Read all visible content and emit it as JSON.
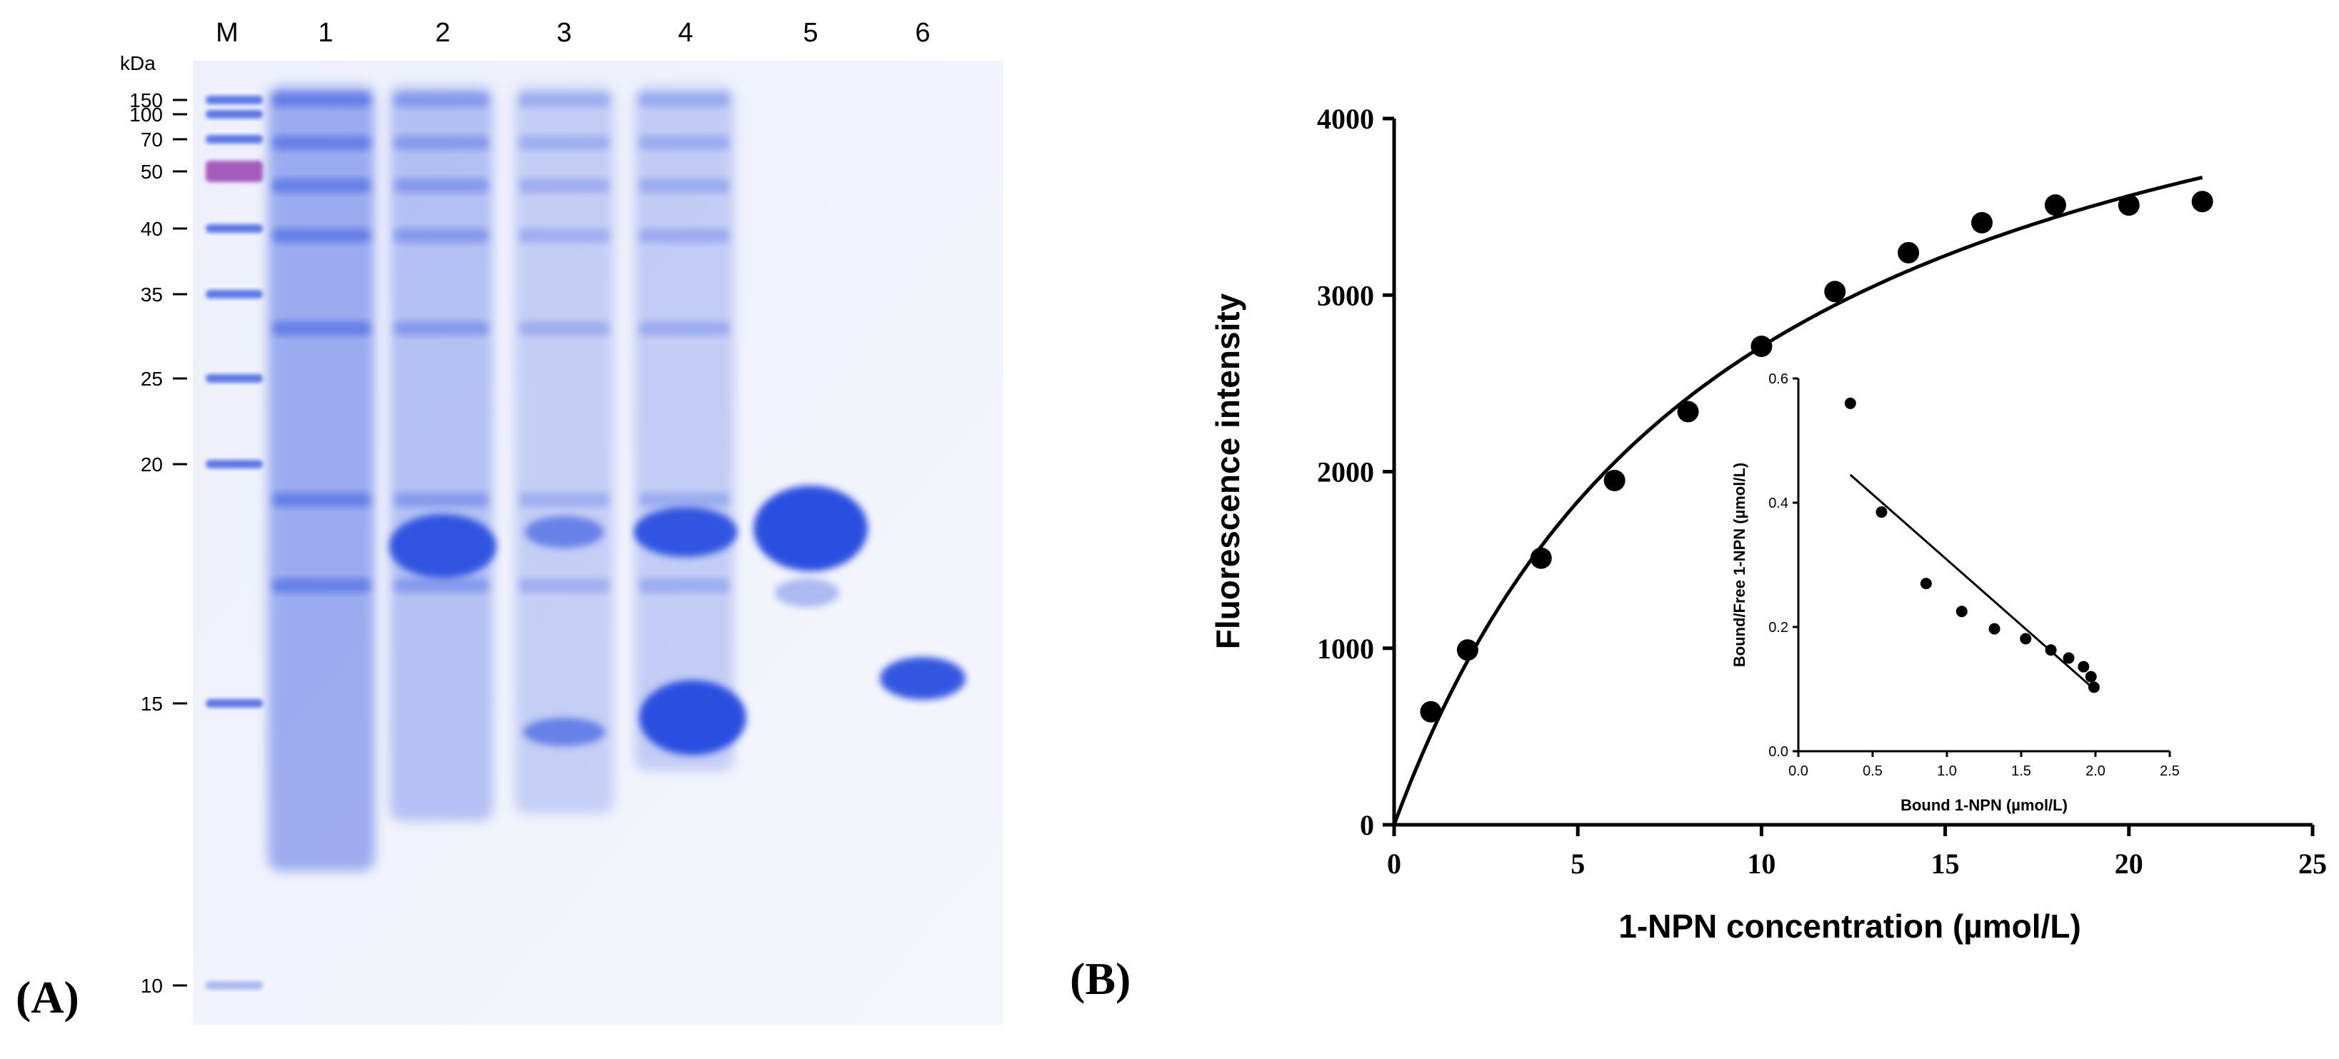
{
  "panels": {
    "a": {
      "label": "(A)"
    },
    "b": {
      "label": "(B)"
    }
  },
  "gel": {
    "unit": "kDa",
    "lane_labels": [
      "M",
      "1",
      "2",
      "3",
      "4",
      "5",
      "6"
    ],
    "marker_kda": [
      "150",
      "100",
      "70",
      "50",
      "40",
      "35",
      "25",
      "20",
      "15",
      "10"
    ],
    "stain_color": "#2a4fe0",
    "background_color": "#f2f3fc"
  },
  "chart_data": [
    {
      "type": "scatter",
      "xlabel": "1-NPN concentration (µmol/L)",
      "ylabel": "Fluorescence intensity",
      "xlim": [
        0,
        25
      ],
      "ylim": [
        0,
        4000
      ],
      "xticks": [
        "0",
        "5",
        "10",
        "15",
        "20",
        "25"
      ],
      "yticks": [
        "0",
        "1000",
        "2000",
        "3000",
        "4000"
      ],
      "points": {
        "x": [
          1,
          2,
          4,
          6,
          8,
          10,
          12,
          14,
          16,
          18,
          20,
          22
        ],
        "y": [
          640,
          990,
          1510,
          1950,
          2340,
          2710,
          3020,
          3240,
          3410,
          3510,
          3510,
          3530
        ]
      },
      "fit": {
        "type": "saturation",
        "bmax": 5200,
        "kd": 9.2
      },
      "grid": false,
      "legend": "none"
    },
    {
      "type": "scatter",
      "inset": true,
      "xlabel": "Bound 1-NPN (µmol/L)",
      "ylabel": "Bound/Free 1-NPN (µmol/L)",
      "xlim": [
        0,
        2.5
      ],
      "ylim": [
        0,
        0.6
      ],
      "xticks": [
        "0.0",
        "0.5",
        "1.0",
        "1.5",
        "2.0",
        "2.5"
      ],
      "yticks": [
        "0.0",
        "0.2",
        "0.4",
        "0.6"
      ],
      "points": {
        "x": [
          0.35,
          0.56,
          0.86,
          1.1,
          1.32,
          1.53,
          1.7,
          1.82,
          1.92,
          1.97,
          1.99
        ],
        "y": [
          0.56,
          0.385,
          0.27,
          0.225,
          0.197,
          0.181,
          0.163,
          0.15,
          0.136,
          0.12,
          0.103
        ]
      },
      "fit": {
        "type": "linear",
        "x": [
          0.35,
          2.0
        ],
        "y": [
          0.445,
          0.098
        ]
      },
      "grid": false,
      "legend": "none"
    }
  ]
}
